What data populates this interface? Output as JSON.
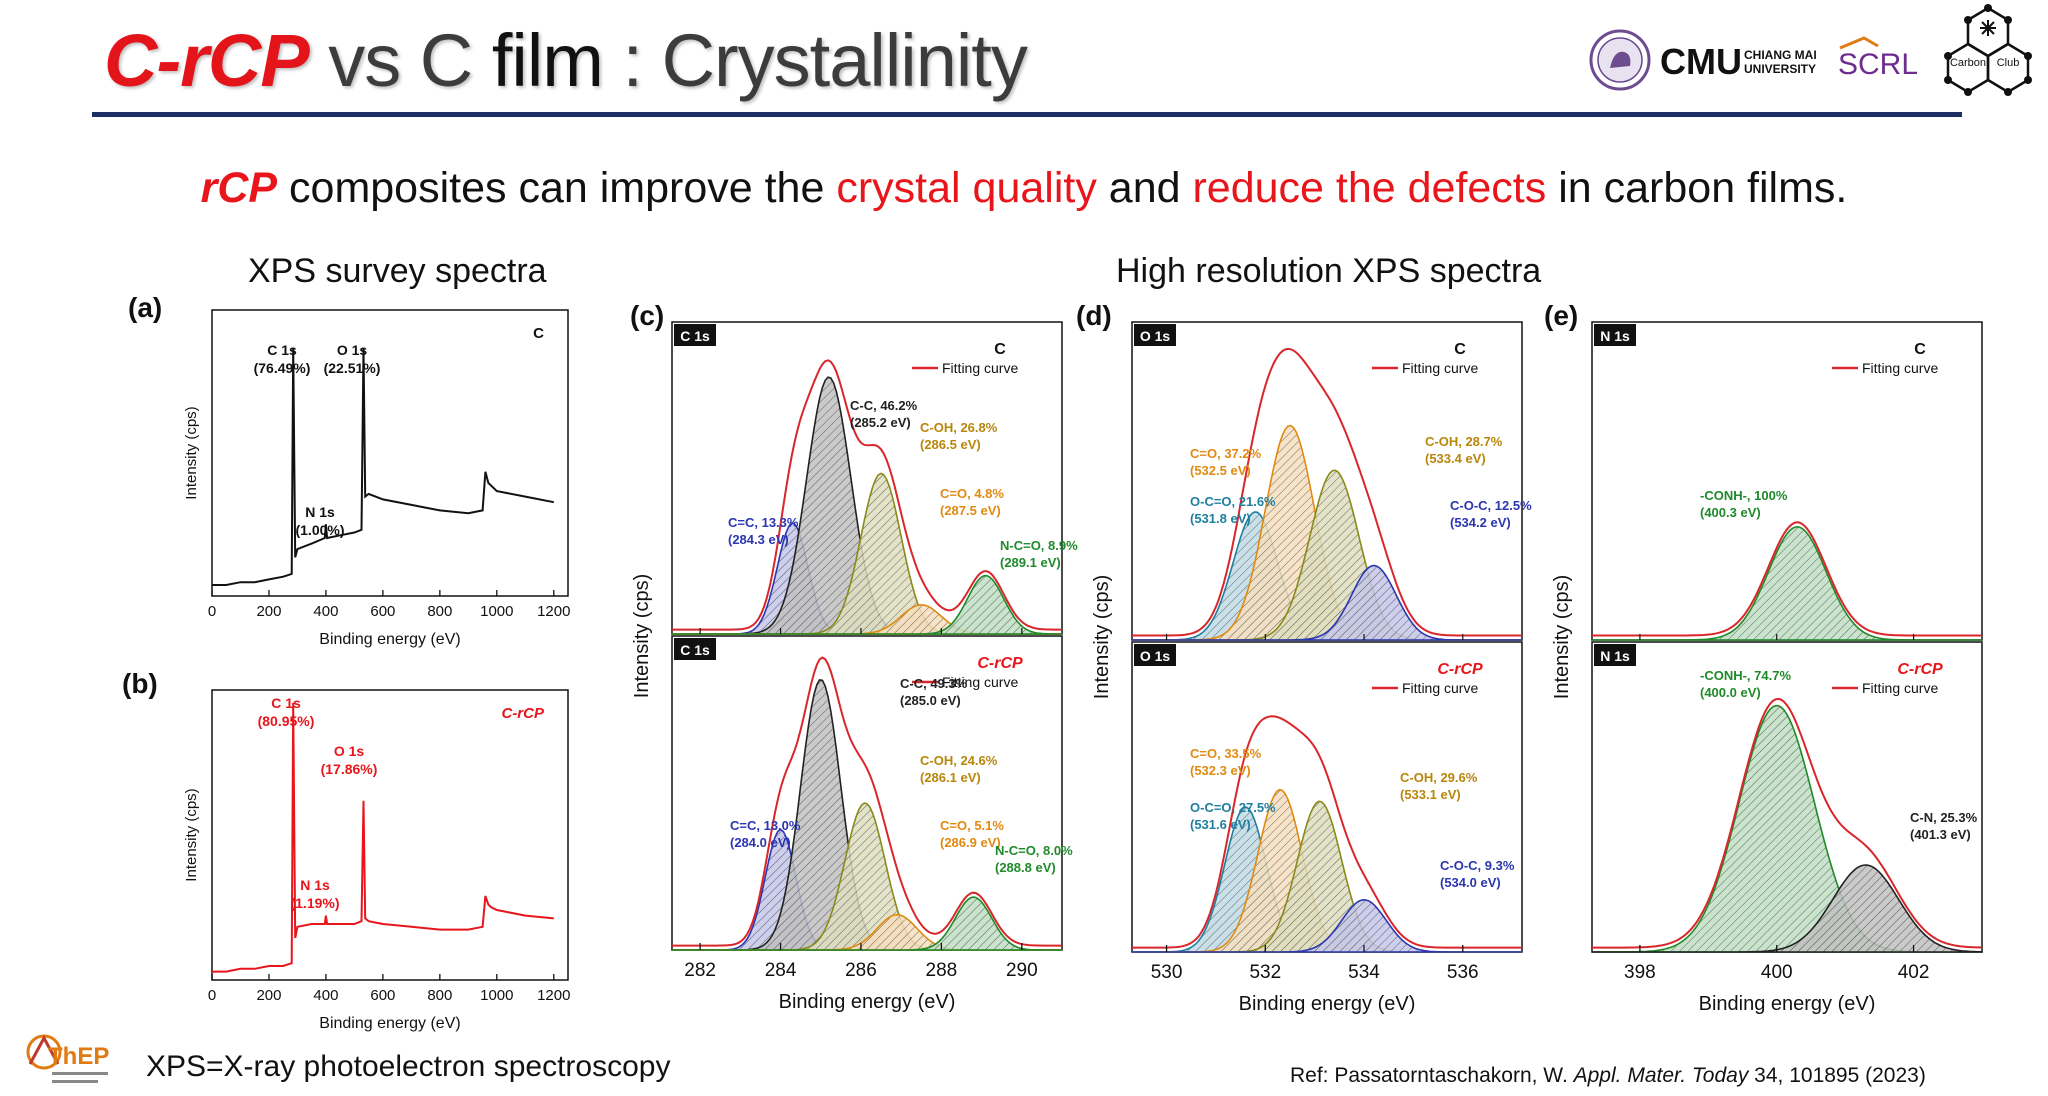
{
  "header": {
    "title_part1": "C-rCP",
    "title_part2": " vs C ",
    "title_part3": "film",
    "title_part4": " : Crystallinity",
    "subtitle_1": "rCP",
    "subtitle_2": " composites can improve the ",
    "subtitle_3": "crystal quality",
    "subtitle_4": " and ",
    "subtitle_5": "reduce the defects",
    "subtitle_6": " in carbon films."
  },
  "logos": {
    "cmu": "CMU",
    "cmu_sub1": "CHIANG MAI",
    "cmu_sub2": "UNIVERSITY",
    "scrl": "SCRL",
    "carbon_club_1": "Carbon",
    "carbon_club_2": "Club",
    "thep": "ThEP"
  },
  "sections": {
    "survey": "XPS survey spectra",
    "highres": "High resolution XPS spectra"
  },
  "panels": {
    "a": "(a)",
    "b": "(b)",
    "c": "(c)",
    "d": "(d)",
    "e": "(e)"
  },
  "footer": {
    "abbrev": "XPS=X-ray photoelectron spectroscopy",
    "ref_1": "Ref: Passatorntaschakorn, W. ",
    "ref_2": "Appl. Mater. Today",
    "ref_3": " 34, 101895 (2023)"
  },
  "colors": {
    "title_red": "#e3151b",
    "rule_navy": "#1c2f64",
    "spectrum_black": "#111111",
    "spectrum_red": "#e8151b",
    "fit_red": "#d9262b",
    "peak_blue": "#2b36b0",
    "peak_black": "#222222",
    "peak_orange": "#e08a12",
    "peak_olive": "#8a8a1a",
    "peak_green": "#1f8a2a",
    "peak_teal": "#1f7fa0",
    "label_gold": "#b8860b"
  },
  "chart_data": [
    {
      "id": "a",
      "type": "line",
      "legend": "C",
      "xlabel": "Binding energy (eV)",
      "ylabel": "Intensity (cps)",
      "xlim": [
        0,
        1250
      ],
      "xticks": [
        0,
        200,
        400,
        600,
        800,
        1000,
        1200
      ],
      "x": [
        0,
        50,
        100,
        150,
        200,
        250,
        280,
        285,
        292,
        300,
        350,
        396,
        400,
        404,
        450,
        500,
        525,
        532,
        538,
        550,
        600,
        700,
        800,
        900,
        950,
        960,
        970,
        980,
        1000,
        1100,
        1200
      ],
      "y": [
        0.04,
        0.04,
        0.05,
        0.05,
        0.06,
        0.07,
        0.08,
        0.9,
        0.14,
        0.17,
        0.19,
        0.21,
        0.26,
        0.21,
        0.22,
        0.23,
        0.24,
        0.9,
        0.36,
        0.37,
        0.35,
        0.33,
        0.31,
        0.3,
        0.31,
        0.45,
        0.41,
        0.4,
        0.38,
        0.36,
        0.34
      ],
      "annotations": [
        {
          "text": "C 1s",
          "sub": "(76.49%)"
        },
        {
          "text": "O 1s",
          "sub": "(22.51%)"
        },
        {
          "text": "N 1s",
          "sub": "(1.00%)"
        }
      ]
    },
    {
      "id": "b",
      "type": "line",
      "legend": "C-rCP",
      "xlabel": "Binding energy (eV)",
      "ylabel": "Intensity (cps)",
      "xlim": [
        0,
        1250
      ],
      "xticks": [
        0,
        200,
        400,
        600,
        800,
        1000,
        1200
      ],
      "x": [
        0,
        50,
        100,
        150,
        200,
        250,
        280,
        285,
        292,
        300,
        350,
        396,
        400,
        404,
        450,
        500,
        525,
        532,
        538,
        550,
        600,
        700,
        800,
        900,
        950,
        960,
        970,
        980,
        1000,
        1100,
        1200
      ],
      "y": [
        0.03,
        0.03,
        0.04,
        0.04,
        0.05,
        0.05,
        0.06,
        0.99,
        0.15,
        0.19,
        0.2,
        0.2,
        0.23,
        0.2,
        0.2,
        0.2,
        0.21,
        0.64,
        0.22,
        0.21,
        0.2,
        0.19,
        0.18,
        0.18,
        0.19,
        0.3,
        0.27,
        0.26,
        0.25,
        0.23,
        0.22
      ],
      "annotations": [
        {
          "text": "C 1s",
          "sub": "(80.95%)"
        },
        {
          "text": "O 1s",
          "sub": "(17.86%)"
        },
        {
          "text": "N 1s",
          "sub": "(1.19%)"
        }
      ]
    },
    {
      "id": "c",
      "type": "line",
      "region": "C 1s",
      "xlabel": "Binding energy (eV)",
      "ylabel": "Intensity (cps)",
      "xlim": [
        281.3,
        291.0
      ],
      "xticks": [
        282,
        284,
        286,
        288,
        290
      ],
      "fit_legend": "Fitting curve",
      "top": {
        "legend": "C",
        "peaks": [
          {
            "center": 284.3,
            "height": 0.38,
            "sigma": 0.38,
            "label": "C=C, 13.3%",
            "sub": "(284.3 eV)",
            "color": "#2b36b0"
          },
          {
            "center": 285.2,
            "height": 0.88,
            "sigma": 0.55,
            "label": "C-C,  46.2%",
            "sub": "(285.2 eV)",
            "color": "#222222"
          },
          {
            "center": 286.5,
            "height": 0.55,
            "sigma": 0.5,
            "label": "C-OH, 26.8%",
            "sub": "(286.5 eV)",
            "color": "#8a8a1a"
          },
          {
            "center": 287.5,
            "height": 0.1,
            "sigma": 0.5,
            "label": "C=O, 4.8%",
            "sub": "(287.5 eV)",
            "color": "#e08a12"
          },
          {
            "center": 289.1,
            "height": 0.2,
            "sigma": 0.45,
            "label": "N-C=O, 8.9%",
            "sub": "(289.1 eV)",
            "color": "#1f8a2a"
          }
        ]
      },
      "bottom": {
        "legend": "C-rCP",
        "peaks": [
          {
            "center": 284.0,
            "height": 0.41,
            "sigma": 0.38,
            "label": "C=C, 13.0%",
            "sub": "(284.0 eV)",
            "color": "#2b36b0"
          },
          {
            "center": 285.0,
            "height": 0.92,
            "sigma": 0.5,
            "label": "C-C, 49.3%",
            "sub": "(285.0 eV)",
            "color": "#222222"
          },
          {
            "center": 286.1,
            "height": 0.5,
            "sigma": 0.5,
            "label": "C-OH, 24.6%",
            "sub": "(286.1 eV)",
            "color": "#8a8a1a"
          },
          {
            "center": 286.9,
            "height": 0.12,
            "sigma": 0.5,
            "label": "C=O, 5.1%",
            "sub": "(286.9 eV)",
            "color": "#e08a12"
          },
          {
            "center": 288.8,
            "height": 0.18,
            "sigma": 0.45,
            "label": "N-C=O, 8.0%",
            "sub": "(288.8 eV)",
            "color": "#1f8a2a"
          }
        ]
      }
    },
    {
      "id": "d",
      "type": "line",
      "region": "O 1s",
      "xlabel": "Binding energy (eV)",
      "ylabel": "Intensity (cps)",
      "xlim": [
        529.3,
        537.2
      ],
      "xticks": [
        530,
        532,
        534,
        536
      ],
      "fit_legend": "Fitting curve",
      "top": {
        "legend": "C",
        "peaks": [
          {
            "center": 531.8,
            "height": 0.43,
            "sigma": 0.45,
            "label": "O-C=O, 21.6%",
            "sub": "(531.8 eV)",
            "color": "#1f7fa0"
          },
          {
            "center": 532.5,
            "height": 0.72,
            "sigma": 0.5,
            "label": "C=O, 37.2%",
            "sub": "(532.5 eV)",
            "color": "#e08a12"
          },
          {
            "center": 533.4,
            "height": 0.57,
            "sigma": 0.5,
            "label": "C-OH, 28.7%",
            "sub": "(533.4 eV)",
            "color": "#8a8a1a"
          },
          {
            "center": 534.2,
            "height": 0.25,
            "sigma": 0.45,
            "label": "C-O-C, 12.5%",
            "sub": "(534.2 eV)",
            "color": "#2b36b0"
          }
        ]
      },
      "bottom": {
        "legend": "C-rCP",
        "peaks": [
          {
            "center": 531.6,
            "height": 0.5,
            "sigma": 0.42,
            "label": "O-C=O, 27.5%",
            "sub": "(531.6 eV)",
            "color": "#1f7fa0"
          },
          {
            "center": 532.3,
            "height": 0.56,
            "sigma": 0.45,
            "label": "C=O, 33.5%",
            "sub": "(532.3 eV)",
            "color": "#e08a12"
          },
          {
            "center": 533.1,
            "height": 0.52,
            "sigma": 0.45,
            "label": "C-OH, 29.6%",
            "sub": "(533.1 eV)",
            "color": "#8a8a1a"
          },
          {
            "center": 534.0,
            "height": 0.18,
            "sigma": 0.45,
            "label": "C-O-C, 9.3%",
            "sub": "(534.0 eV)",
            "color": "#2b36b0"
          }
        ]
      }
    },
    {
      "id": "e",
      "type": "line",
      "region": "N 1s",
      "xlabel": "Binding energy (eV)",
      "ylabel": "Intensity (cps)",
      "xlim": [
        397.3,
        403.0
      ],
      "xticks": [
        398,
        400,
        402
      ],
      "fit_legend": "Fitting curve",
      "top": {
        "legend": "C",
        "peaks": [
          {
            "center": 400.3,
            "height": 0.38,
            "sigma": 0.42,
            "label": "-CONH-, 100%",
            "sub": "(400.3 eV)",
            "color": "#1f8a2a"
          }
        ]
      },
      "bottom": {
        "legend": "C-rCP",
        "peaks": [
          {
            "center": 400.0,
            "height": 0.85,
            "sigma": 0.55,
            "label": "-CONH-, 74.7%",
            "sub": "(400.0 eV)",
            "color": "#1f8a2a"
          },
          {
            "center": 401.3,
            "height": 0.3,
            "sigma": 0.48,
            "label": "C-N, 25.3%",
            "sub": "(401.3 eV)",
            "color": "#222222"
          }
        ]
      }
    }
  ]
}
